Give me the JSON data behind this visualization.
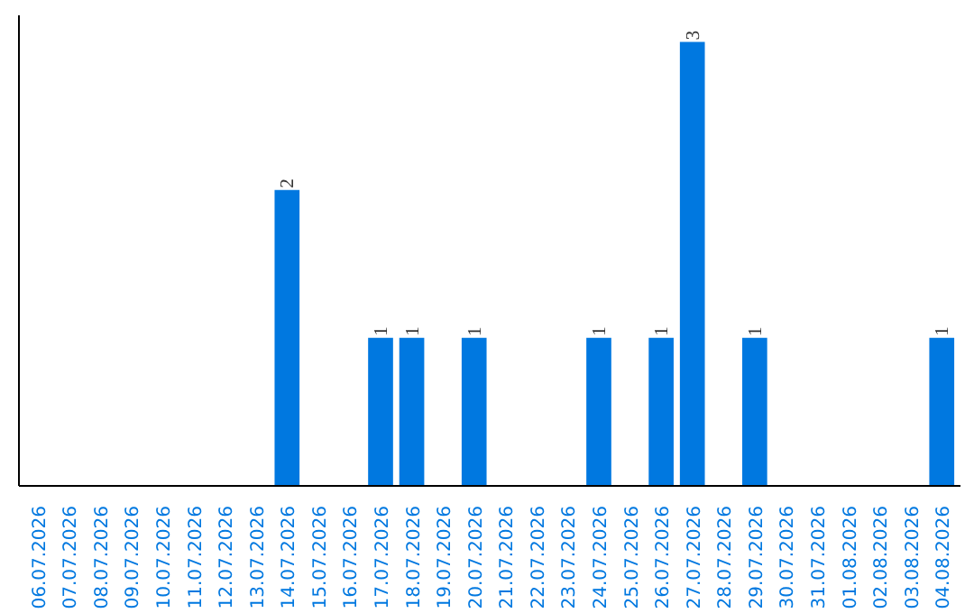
{
  "chart_data": {
    "type": "bar",
    "categories": [
      "06.07.2026",
      "07.07.2026",
      "08.07.2026",
      "09.07.2026",
      "10.07.2026",
      "11.07.2026",
      "12.07.2026",
      "13.07.2026",
      "14.07.2026",
      "15.07.2026",
      "16.07.2026",
      "17.07.2026",
      "18.07.2026",
      "19.07.2026",
      "20.07.2026",
      "21.07.2026",
      "22.07.2026",
      "23.07.2026",
      "24.07.2026",
      "25.07.2026",
      "26.07.2026",
      "27.07.2026",
      "28.07.2026",
      "29.07.2026",
      "30.07.2026",
      "31.07.2026",
      "01.08.2026",
      "02.08.2026",
      "03.08.2026",
      "04.08.2026"
    ],
    "values": [
      0,
      0,
      0,
      0,
      0,
      0,
      0,
      0,
      2,
      0,
      0,
      1,
      1,
      0,
      1,
      0,
      0,
      0,
      1,
      0,
      1,
      3,
      0,
      1,
      0,
      0,
      0,
      0,
      0,
      1
    ],
    "color": "#0078e0",
    "value_labels": [
      null,
      null,
      null,
      null,
      null,
      null,
      null,
      null,
      "2",
      null,
      null,
      "1",
      "1",
      null,
      "1",
      null,
      null,
      null,
      "1",
      null,
      "1",
      "3",
      null,
      "1",
      null,
      null,
      null,
      null,
      null,
      "1"
    ],
    "tick_labels": "x",
    "grid": false
  }
}
